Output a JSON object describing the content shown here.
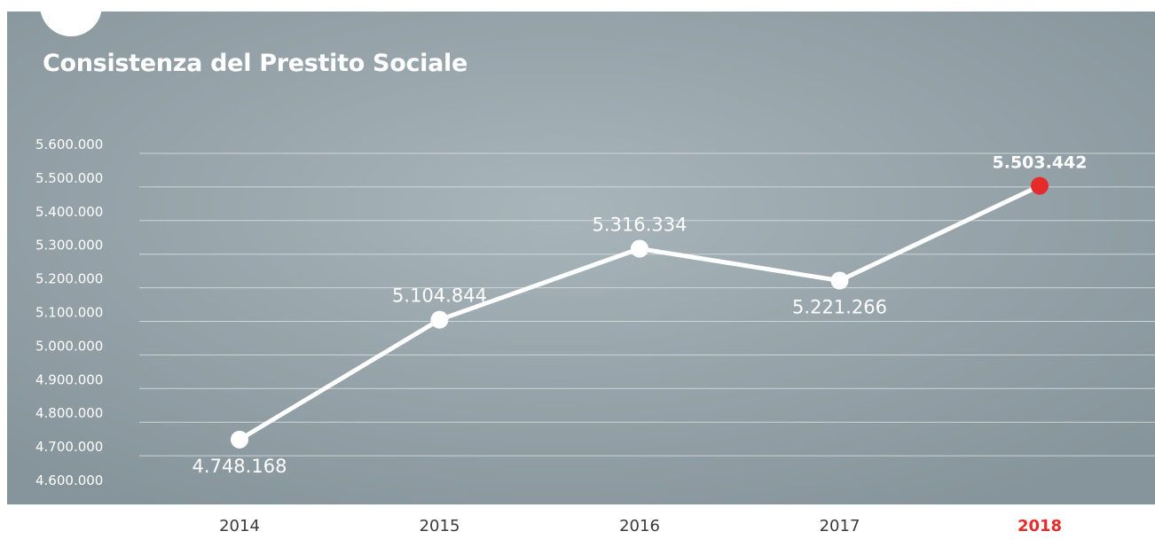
{
  "chart_data": {
    "type": "line",
    "title": "Consistenza del Prestito Sociale",
    "xlabel": "",
    "ylabel": "",
    "categories": [
      "2014",
      "2015",
      "2016",
      "2017",
      "2018"
    ],
    "series": [
      {
        "values": [
          4748168,
          5104844,
          5316334,
          5221266,
          5503442
        ],
        "labels": [
          "4.748.168",
          "5.104.844",
          "5.316.334",
          "5.221.266",
          "5.503.442"
        ]
      }
    ],
    "yticks": [
      "4.600.000",
      "4.700.000",
      "4.800.000",
      "4.900.000",
      "5.000.000",
      "5.100.000",
      "5.200.000",
      "5.300.000",
      "5.400.000",
      "5.500.000",
      "5.600.000"
    ],
    "ylim": [
      4600000,
      5600000
    ],
    "grid": true,
    "legend": "none",
    "highlight_index": 4,
    "colors": {
      "panel_center": "#a8b5bb",
      "panel_edge": "#86949b",
      "line": "#ffffff",
      "highlight": "#e52b2b",
      "gridline": "#d8dfe2",
      "axis_text": "#ffffff",
      "category_text": "#3a3a3a"
    }
  }
}
